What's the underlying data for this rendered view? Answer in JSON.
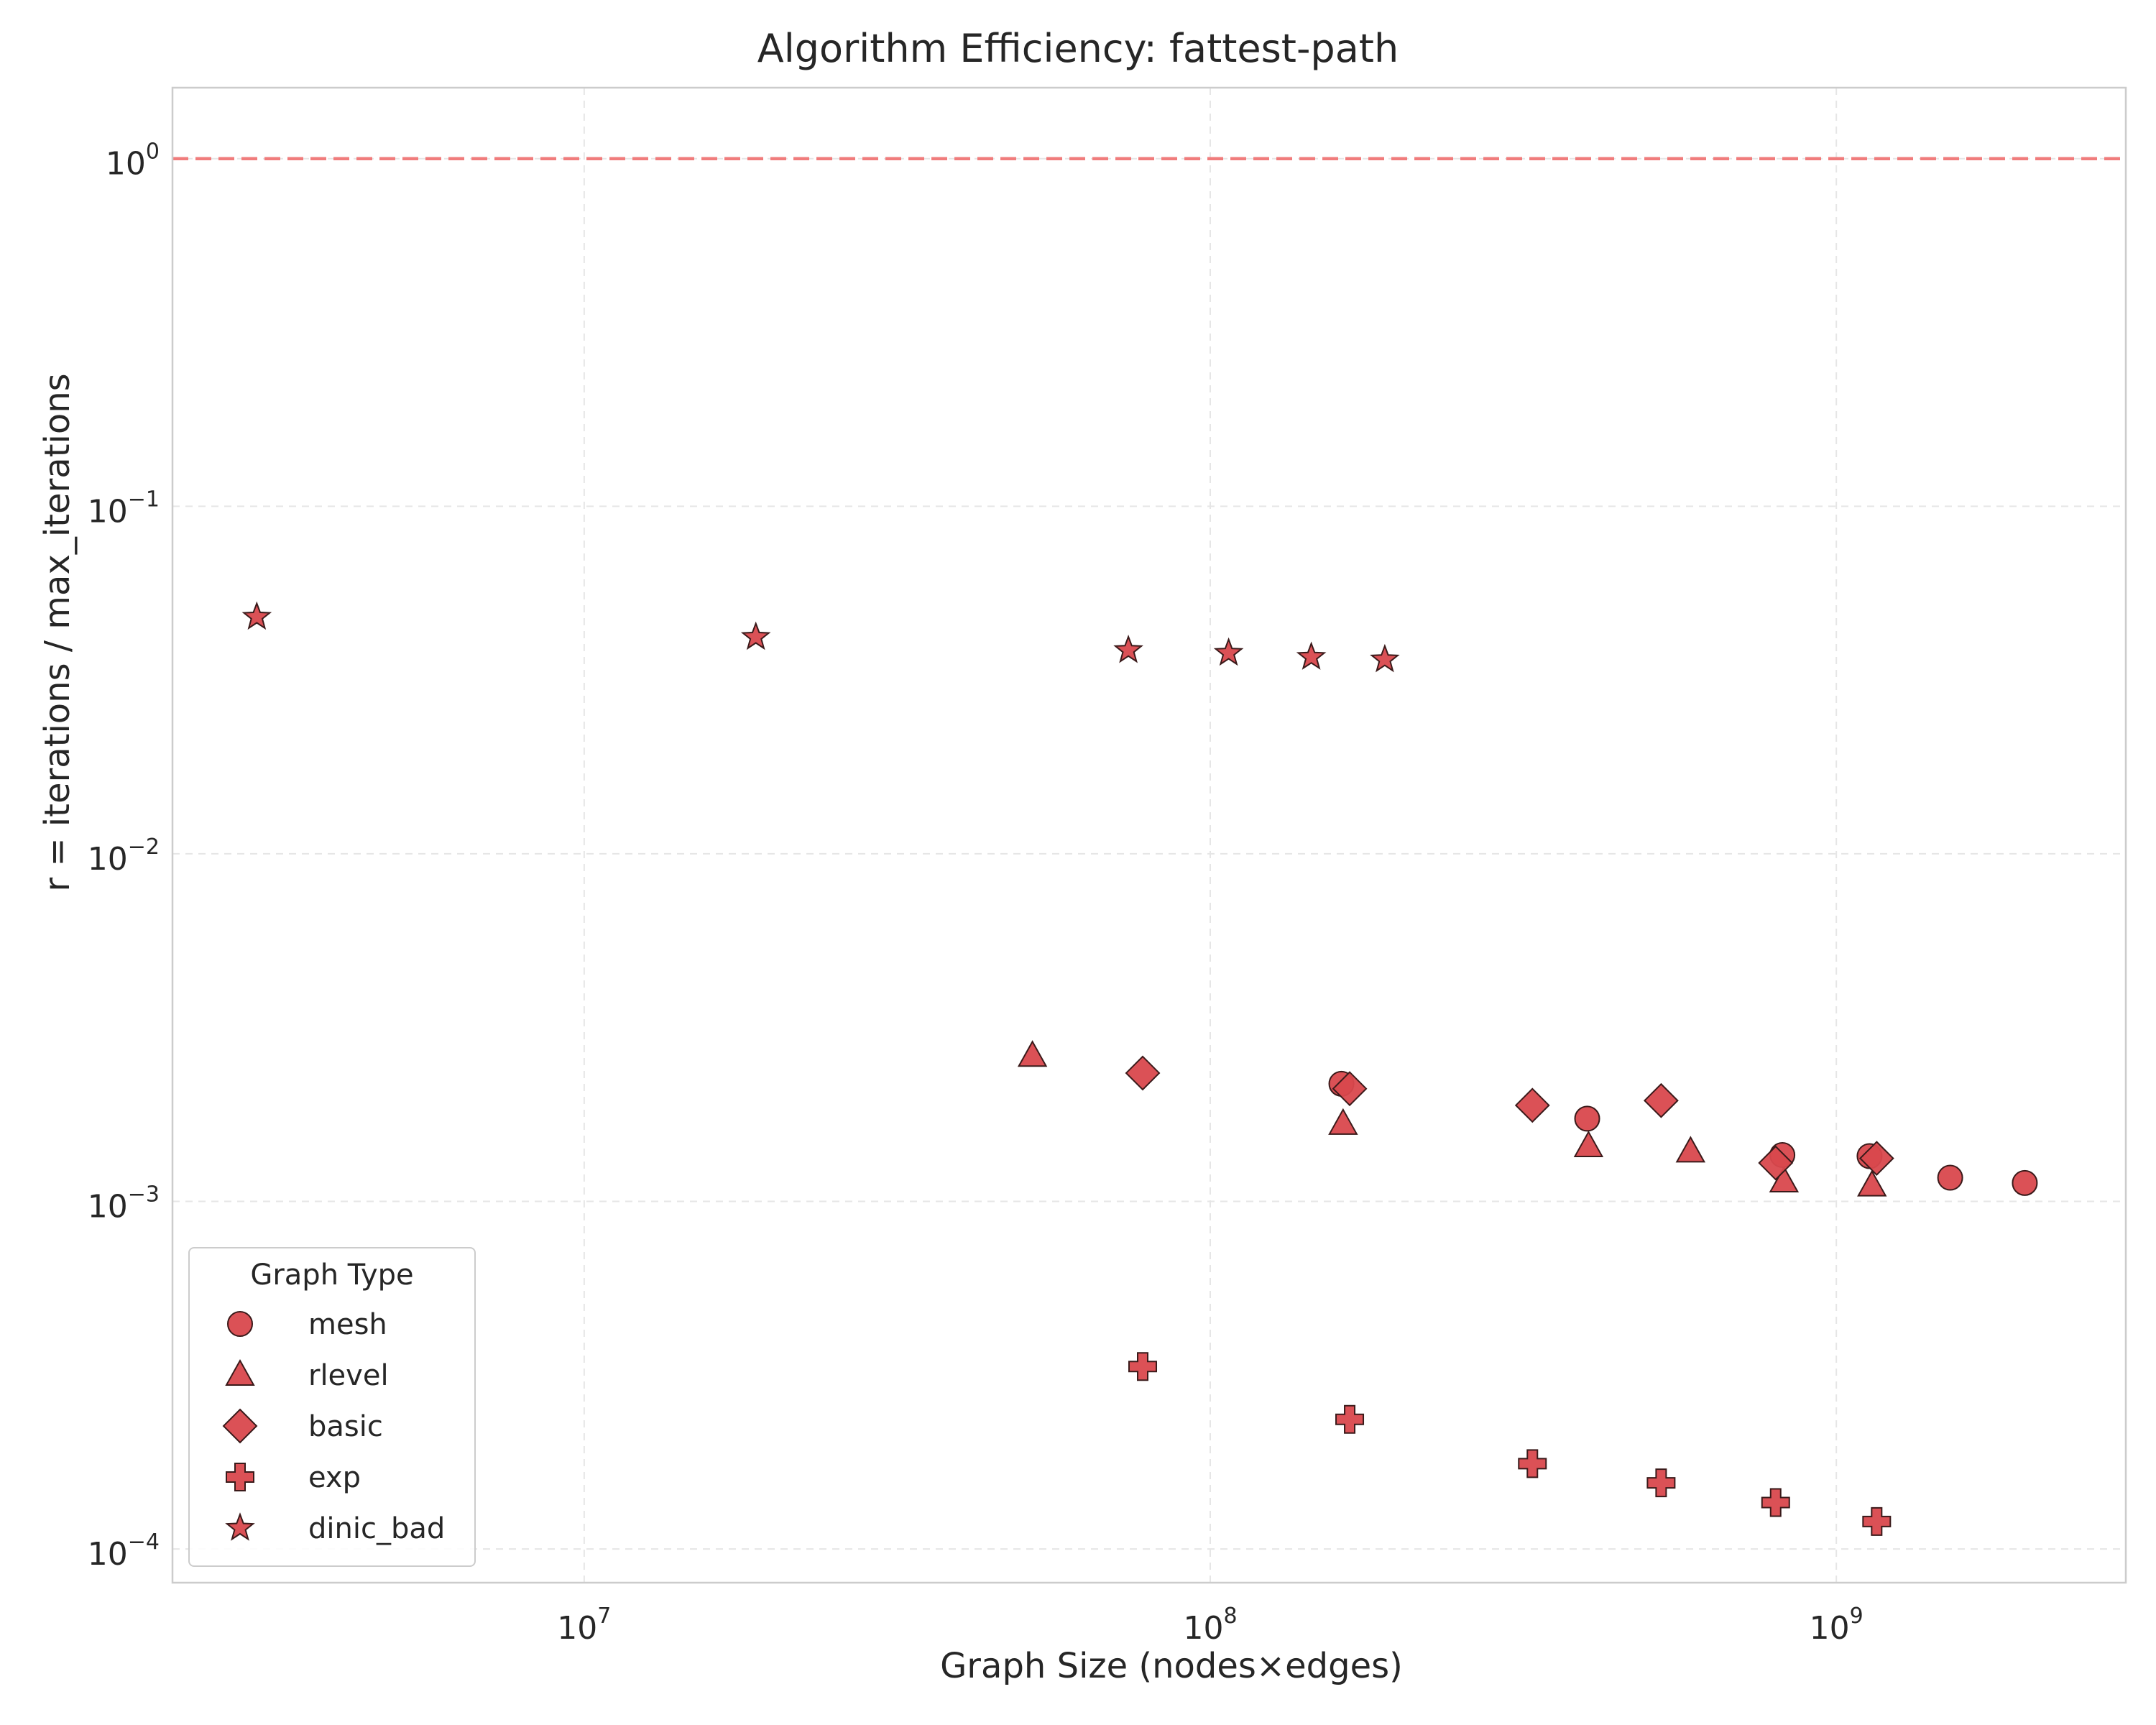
{
  "chart_data": {
    "type": "scatter",
    "title": "Algorithm Efficiency: fattest-path",
    "xlabel": "Graph Size (nodes×edges)",
    "ylabel": "r = iterations / max_iterations",
    "xscale": "log",
    "yscale": "log",
    "xlim": [
      2200000,
      2900000000
    ],
    "ylim": [
      8e-05,
      1.6
    ],
    "x_ticks": [
      {
        "value": 10000000,
        "base": "10",
        "exp": "7"
      },
      {
        "value": 100000000,
        "base": "10",
        "exp": "8"
      },
      {
        "value": 1000000000,
        "base": "10",
        "exp": "9"
      }
    ],
    "y_ticks": [
      {
        "value": 0.0001,
        "base": "10",
        "exp": "−4"
      },
      {
        "value": 0.001,
        "base": "10",
        "exp": "−3"
      },
      {
        "value": 0.01,
        "base": "10",
        "exp": "−2"
      },
      {
        "value": 0.1,
        "base": "10",
        "exp": "−1"
      },
      {
        "value": 1,
        "base": "10",
        "exp": "0"
      }
    ],
    "grid": true,
    "reference_line": {
      "y": 1,
      "style": "dashed",
      "color": "#f07c7c"
    },
    "marker_color": "#d9484d",
    "legend": {
      "title": "Graph Type",
      "placement": "lower-left"
    },
    "series": [
      {
        "name": "mesh",
        "marker": "circle",
        "points": [
          [
            162000000,
            0.00218
          ],
          [
            400000000,
            0.00173
          ],
          [
            820000000,
            0.00136
          ],
          [
            1130000000,
            0.00135
          ],
          [
            1520000000,
            0.00117
          ],
          [
            2000000000,
            0.00113
          ]
        ]
      },
      {
        "name": "rlevel",
        "marker": "triangle",
        "points": [
          [
            52000000,
            0.00262
          ],
          [
            163000000,
            0.00167
          ],
          [
            402000000,
            0.00144
          ],
          [
            585000000,
            0.00139
          ],
          [
            825000000,
            0.00114
          ],
          [
            1140000000,
            0.00111
          ]
        ]
      },
      {
        "name": "basic",
        "marker": "diamond",
        "points": [
          [
            78000000,
            0.00234
          ],
          [
            167000000,
            0.00211
          ],
          [
            327000000,
            0.00189
          ],
          [
            525000000,
            0.00195
          ],
          [
            800000000,
            0.00129
          ],
          [
            1160000000,
            0.00133
          ]
        ]
      },
      {
        "name": "exp",
        "marker": "plus",
        "points": [
          [
            78000000,
            0.000335
          ],
          [
            167000000,
            0.000236
          ],
          [
            327000000,
            0.000176
          ],
          [
            525000000,
            0.000155
          ],
          [
            800000000,
            0.000136
          ],
          [
            1160000000,
            0.00012
          ]
        ]
      },
      {
        "name": "dinic_bad",
        "marker": "star",
        "points": [
          [
            3000000,
            0.048
          ],
          [
            18800000,
            0.042
          ],
          [
            74000000,
            0.0385
          ],
          [
            107000000,
            0.0378
          ],
          [
            145000000,
            0.0368
          ],
          [
            190000000,
            0.0362
          ]
        ]
      }
    ]
  }
}
